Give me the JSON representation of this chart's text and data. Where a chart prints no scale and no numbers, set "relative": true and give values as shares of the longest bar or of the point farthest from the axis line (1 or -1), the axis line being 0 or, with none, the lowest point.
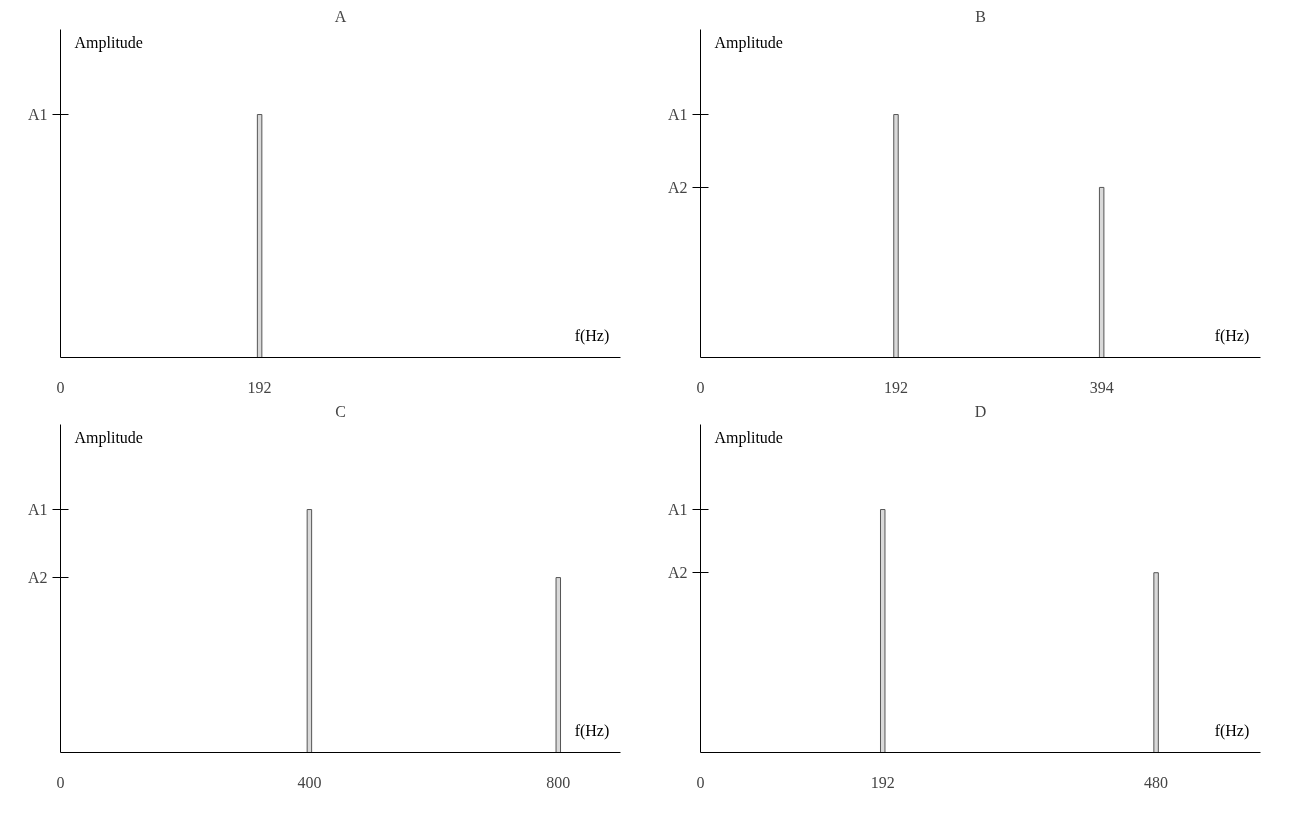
{
  "chart_data": [
    {
      "type": "bar",
      "title": "A",
      "xlabel": "f(Hz)",
      "ylabel": "Amplitude",
      "relative": true,
      "x": [
        192
      ],
      "values": [
        1
      ],
      "color": "#d9d9d9",
      "xlim": [
        0,
        540
      ],
      "xticks": [
        0,
        192
      ],
      "grid": false,
      "annotations": [
        "A1"
      ]
    },
    {
      "type": "bar",
      "title": "B",
      "xlabel": "f(Hz)",
      "ylabel": "Amplitude",
      "relative": true,
      "x": [
        192,
        394
      ],
      "values": [
        1,
        0.7
      ],
      "color": "#d9d9d9",
      "xlim": [
        0,
        550
      ],
      "xticks": [
        0,
        192,
        394
      ],
      "grid": false,
      "annotations": [
        "A1",
        "A2"
      ]
    },
    {
      "type": "bar",
      "title": "C",
      "xlabel": "f(Hz)",
      "ylabel": "Amplitude",
      "relative": true,
      "x": [
        400,
        800
      ],
      "values": [
        1,
        0.72
      ],
      "color": "#d9d9d9",
      "xlim": [
        0,
        900
      ],
      "xticks": [
        0,
        400,
        800
      ],
      "grid": false,
      "annotations": [
        "A1",
        "A2"
      ]
    },
    {
      "type": "bar",
      "title": "D",
      "xlabel": "f(Hz)",
      "ylabel": "Amplitude",
      "relative": true,
      "x": [
        192,
        480
      ],
      "values": [
        1,
        0.74
      ],
      "color": "#d9d9d9",
      "xlim": [
        0,
        590
      ],
      "xticks": [
        0,
        192,
        480
      ],
      "grid": false,
      "annotations": [
        "A1",
        "A2"
      ]
    }
  ]
}
